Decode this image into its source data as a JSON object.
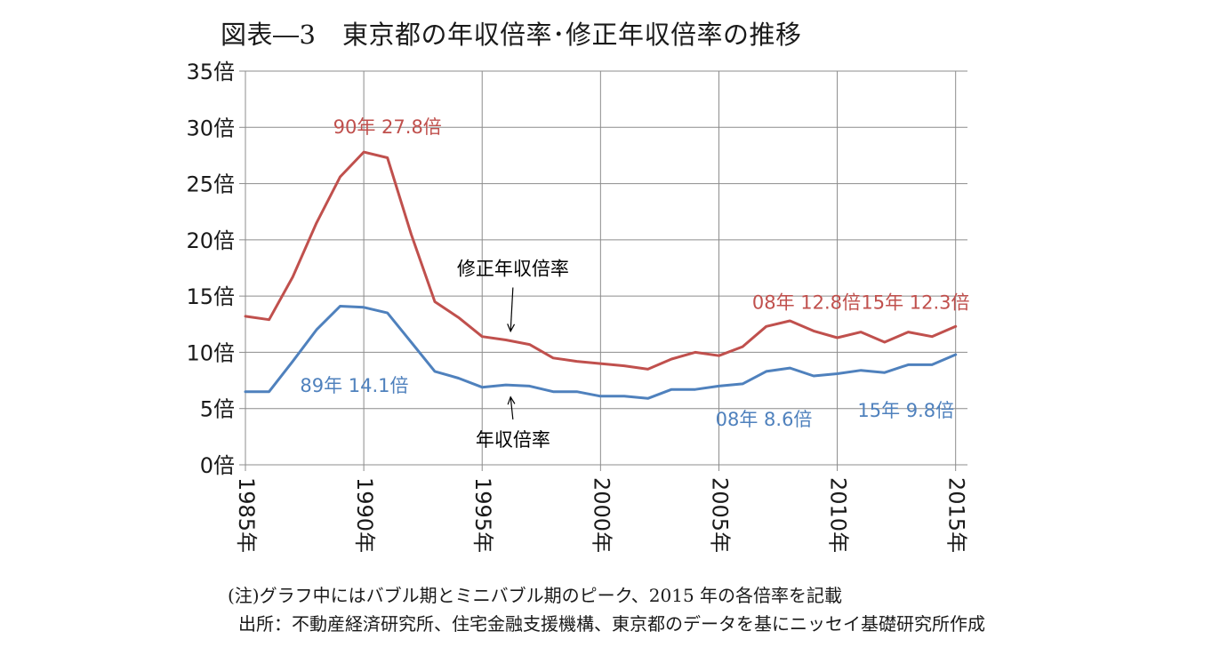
{
  "title": "図表―3　東京都の年収倍率･修正年収倍率の推移",
  "notes": {
    "line1": "(注)グラフ中にはバブル期とミニバブル期のピーク、2015 年の各倍率を記載",
    "line2": "出所：不動産経済研究所、住宅金融支援機構、東京都のデータを基にニッセイ基礎研究所作成"
  },
  "chart_data": {
    "type": "line",
    "x": [
      1985,
      1986,
      1987,
      1988,
      1989,
      1990,
      1991,
      1992,
      1993,
      1994,
      1995,
      1996,
      1997,
      1998,
      1999,
      2000,
      2001,
      2002,
      2003,
      2004,
      2005,
      2006,
      2007,
      2008,
      2009,
      2010,
      2011,
      2012,
      2013,
      2014,
      2015
    ],
    "series": [
      {
        "name": "修正年収倍率",
        "color": "#c0504d",
        "values": [
          13.2,
          12.9,
          16.7,
          21.5,
          25.6,
          27.8,
          27.3,
          20.5,
          14.5,
          13.1,
          11.4,
          11.1,
          10.7,
          9.5,
          9.2,
          9.0,
          8.8,
          8.5,
          9.4,
          10.0,
          9.7,
          10.5,
          12.3,
          12.8,
          11.9,
          11.3,
          11.8,
          10.9,
          11.8,
          11.4,
          12.3
        ]
      },
      {
        "name": "年収倍率",
        "color": "#4f81bd",
        "values": [
          6.5,
          6.5,
          9.2,
          12.0,
          14.1,
          14.0,
          13.5,
          10.9,
          8.3,
          7.7,
          6.9,
          7.1,
          7.0,
          6.5,
          6.5,
          6.1,
          6.1,
          5.9,
          6.7,
          6.7,
          7.0,
          7.2,
          8.3,
          8.6,
          7.9,
          8.1,
          8.4,
          8.2,
          8.9,
          8.9,
          9.8
        ]
      }
    ],
    "ylim": [
      0,
      35
    ],
    "xlim": [
      1985,
      2015.5
    ],
    "y_ticks": [
      0,
      5,
      10,
      15,
      20,
      25,
      30,
      35
    ],
    "y_tick_labels": [
      "0倍",
      "5倍",
      "10倍",
      "15倍",
      "20倍",
      "25倍",
      "30倍",
      "35倍"
    ],
    "x_ticks": [
      1985,
      1990,
      1995,
      2000,
      2005,
      2010,
      2015
    ],
    "x_tick_labels": [
      "1985年",
      "1990年",
      "1995年",
      "2000年",
      "2005年",
      "2010年",
      "2015年"
    ],
    "grid": true,
    "series_labels": [
      {
        "text": "修正年収倍率",
        "color": "#000000",
        "at_x": 1996.3,
        "at_y": 17.5,
        "arrow_to_x": 1996.2,
        "arrow_to_y": 11.4
      },
      {
        "text": "年収倍率",
        "color": "#000000",
        "at_x": 1996.3,
        "at_y": 2.3,
        "arrow_to_x": 1996.2,
        "arrow_to_y": 6.5
      }
    ],
    "annotations": [
      {
        "text": "90年 27.8倍",
        "color": "#c0504d",
        "at_x": 1991.0,
        "at_y": 30.1,
        "anchor": "middle"
      },
      {
        "text": "89年 14.1倍",
        "color": "#4f81bd",
        "at_x": 1989.6,
        "at_y": 7.1,
        "anchor": "middle"
      },
      {
        "text": "08年 12.8倍",
        "color": "#c0504d",
        "at_x": 2008.7,
        "at_y": 14.5,
        "anchor": "middle"
      },
      {
        "text": "15年 12.3倍",
        "color": "#c0504d",
        "at_x": 2013.3,
        "at_y": 14.5,
        "anchor": "middle"
      },
      {
        "text": "08年 8.6倍",
        "color": "#4f81bd",
        "at_x": 2006.9,
        "at_y": 4.1,
        "anchor": "middle"
      },
      {
        "text": "15年 9.8倍",
        "color": "#4f81bd",
        "at_x": 2012.9,
        "at_y": 4.9,
        "anchor": "middle"
      }
    ]
  }
}
